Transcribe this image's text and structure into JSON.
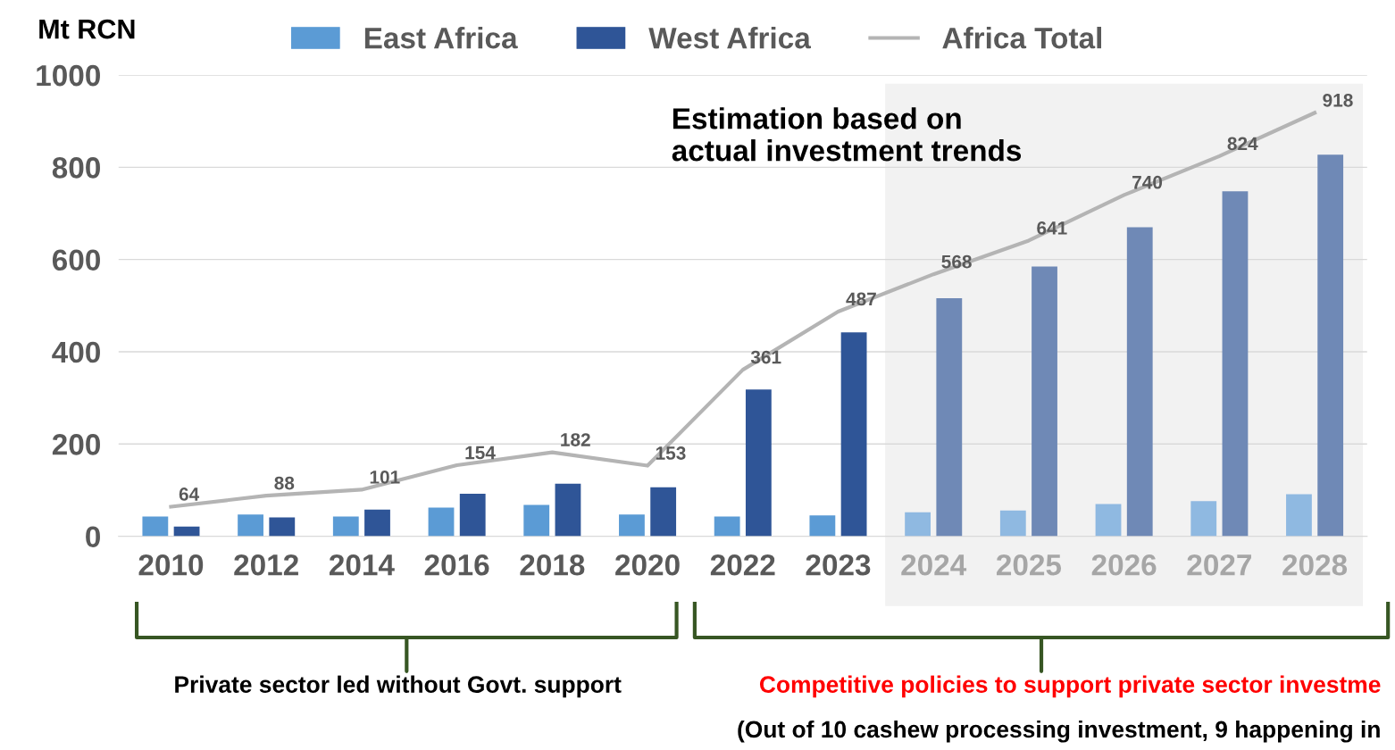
{
  "chart_data": {
    "type": "bar",
    "ylabel": "Mt RCN",
    "categories": [
      "2010",
      "2012",
      "2014",
      "2016",
      "2018",
      "2020",
      "2022",
      "2023",
      "2024",
      "2025",
      "2026",
      "2027",
      "2028"
    ],
    "series": [
      {
        "name": "East Africa",
        "color": "#5b9bd5",
        "colors": [
          "#5b9bd5",
          "#5b9bd5",
          "#5b9bd5",
          "#5b9bd5",
          "#5b9bd5",
          "#5b9bd5",
          "#5b9bd5",
          "#5b9bd5",
          "#8fb9e1",
          "#8fb9e1",
          "#8fb9e1",
          "#8fb9e1",
          "#8fb9e1"
        ],
        "values": [
          43,
          47,
          43,
          62,
          68,
          47,
          43,
          45,
          52,
          56,
          70,
          76,
          91
        ]
      },
      {
        "name": "West Africa",
        "color": "#2f5597",
        "colors": [
          "#2f5597",
          "#2f5597",
          "#2f5597",
          "#2f5597",
          "#2f5597",
          "#2f5597",
          "#2f5597",
          "#2f5597",
          "#6f89b6",
          "#6f89b6",
          "#6f89b6",
          "#6f89b6",
          "#6f89b6"
        ],
        "values": [
          21,
          41,
          58,
          92,
          114,
          106,
          318,
          442,
          516,
          585,
          670,
          748,
          827
        ]
      },
      {
        "name": "Africa Total",
        "type": "line",
        "color": "#b4b4b4",
        "data_labels": true,
        "values": [
          64,
          88,
          101,
          154,
          182,
          153,
          361,
          487,
          568,
          641,
          740,
          824,
          918
        ]
      }
    ],
    "ylim": [
      0,
      1000
    ],
    "yticks": [
      0,
      200,
      400,
      600,
      800,
      1000
    ],
    "grid": "y",
    "legend": "top",
    "bands": [
      {
        "axis": "x",
        "from": "2024",
        "to": "2028",
        "label": "Estimation based on actual investment trends",
        "color": "#f2f2f2"
      }
    ],
    "annotations": [
      "Private sector led without Govt. support",
      "Competitive policies to support private sector investme",
      "(Out of 10 cashew processing investment, 9 happening in"
    ]
  }
}
